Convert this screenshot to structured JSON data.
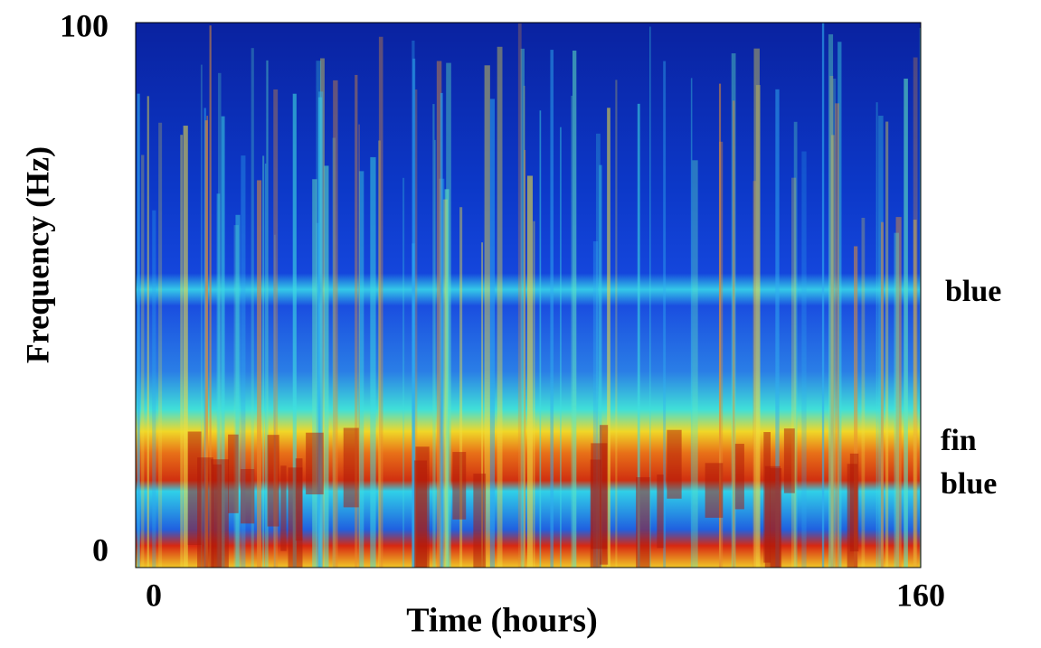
{
  "chart_data": {
    "type": "spectrogram",
    "xlabel": "Time (hours)",
    "ylabel": "Frequency (Hz)",
    "xlim": [
      0,
      160
    ],
    "xticks": [
      0,
      160
    ],
    "ylim": [
      0,
      100
    ],
    "yticks": [
      0,
      100
    ],
    "annotations": [
      "blue",
      "fin",
      "blue"
    ]
  }
}
